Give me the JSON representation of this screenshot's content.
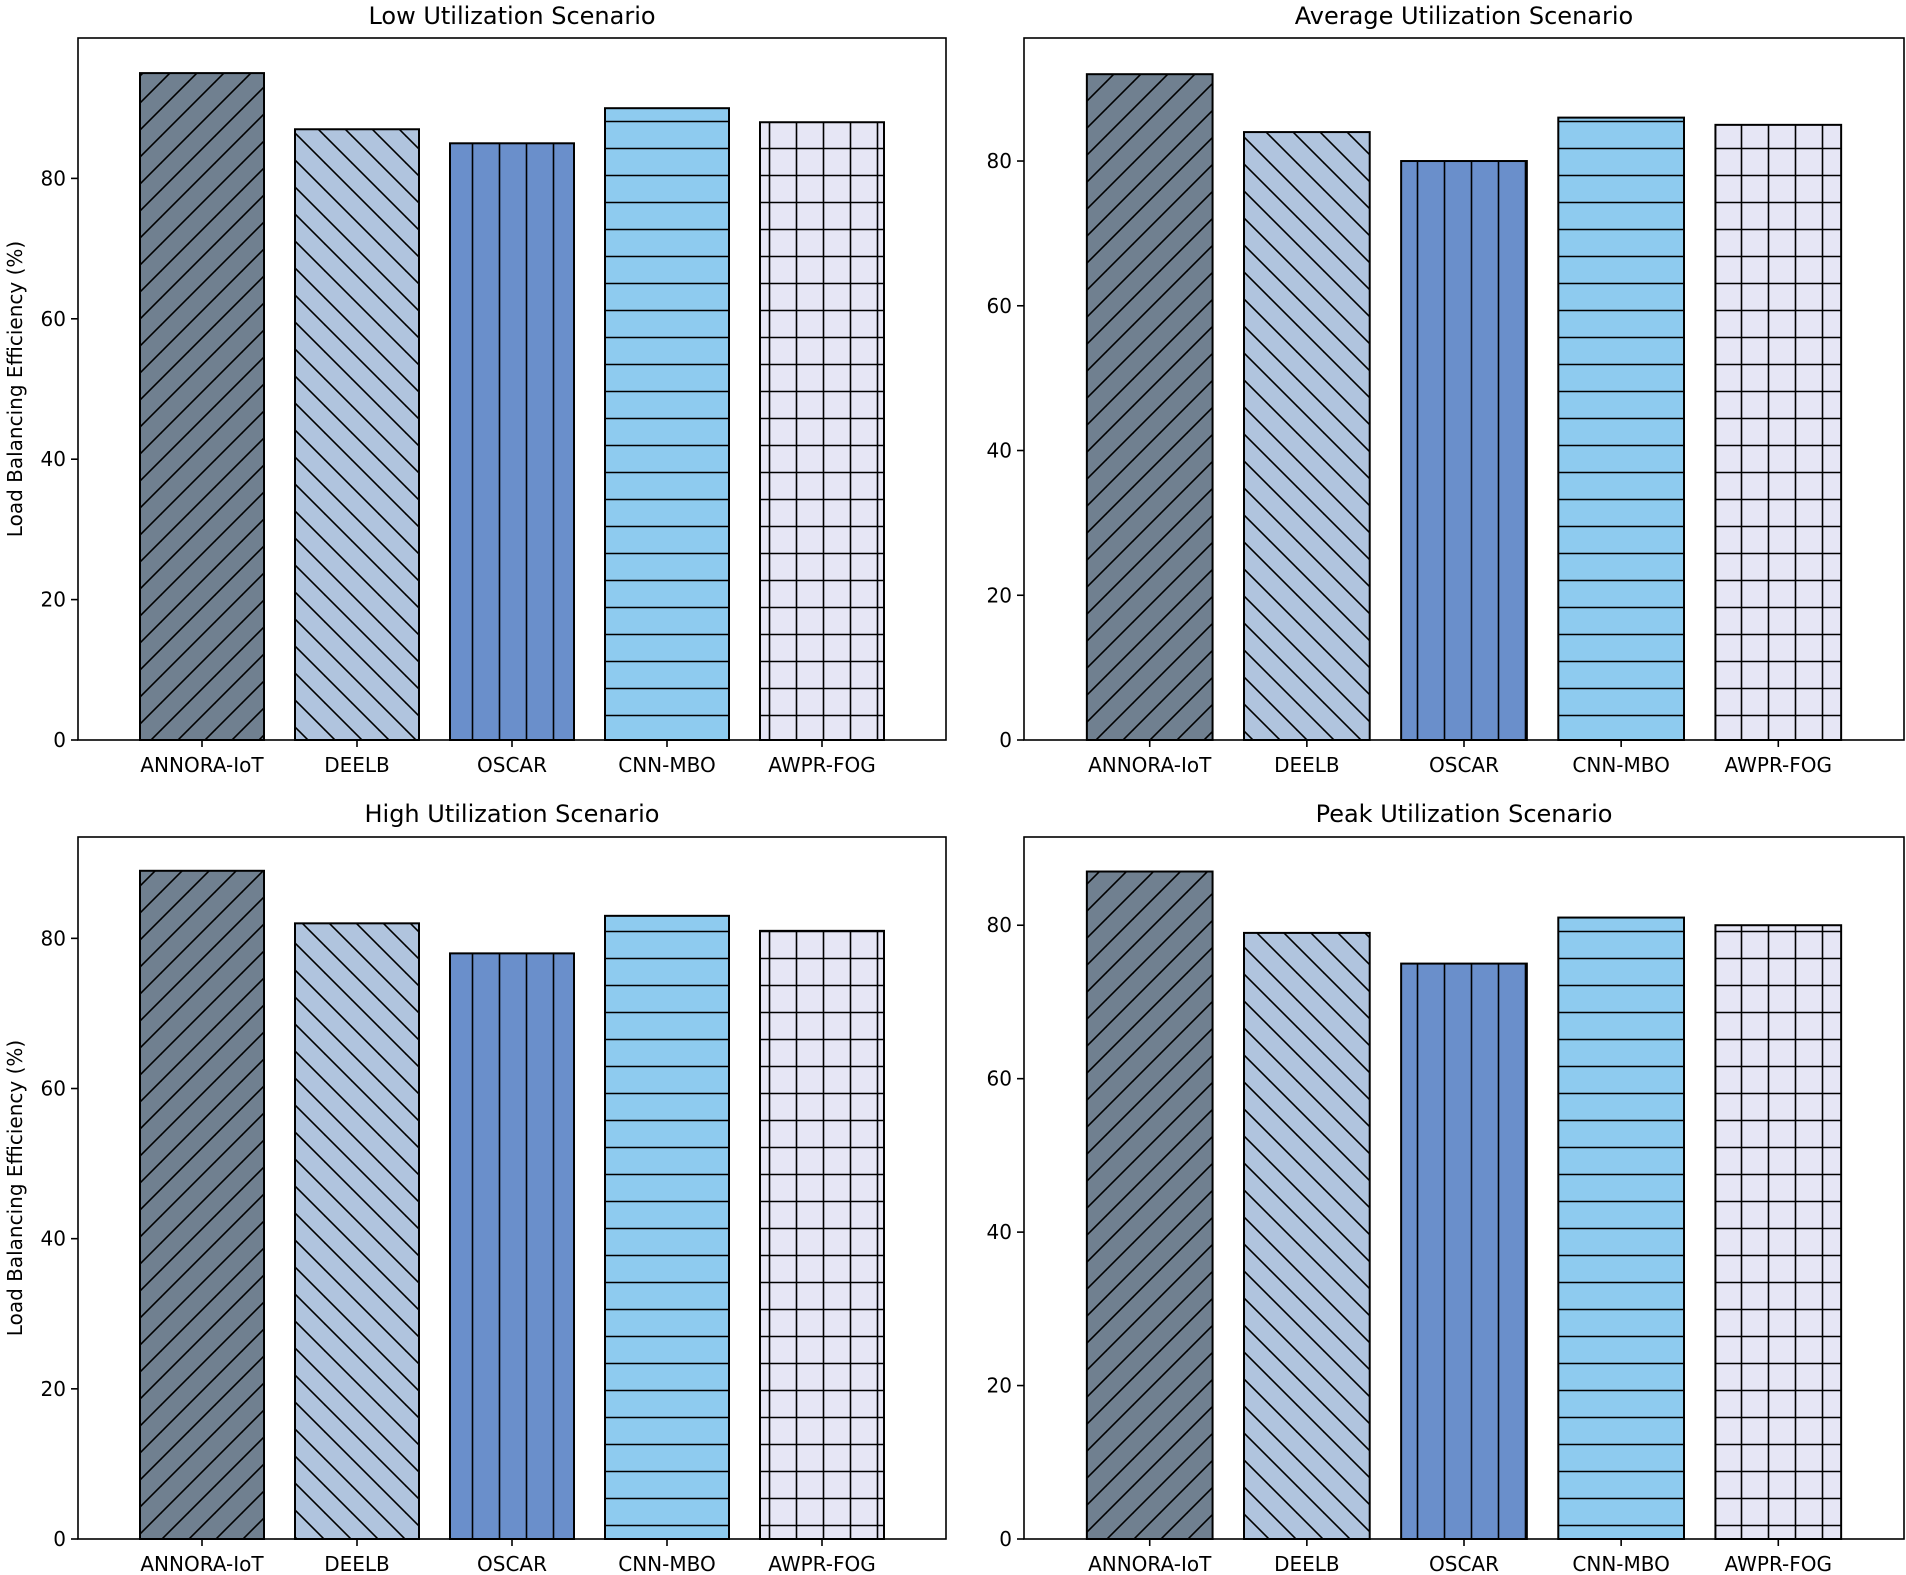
{
  "chart_data": [
    {
      "type": "bar",
      "title": "Low Utilization Scenario",
      "xlabel": "",
      "ylabel": "Load Balancing Efficiency (%)",
      "ylim": [
        0,
        100
      ],
      "yticks": [
        0,
        20,
        40,
        60,
        80
      ],
      "grid": false,
      "categories": [
        "ANNORA-IoT",
        "DEELB",
        "OSCAR",
        "CNN-MBO",
        "AWPR-FOG"
      ],
      "values": [
        95,
        87,
        85,
        90,
        88
      ]
    },
    {
      "type": "bar",
      "title": "Average Utilization Scenario",
      "xlabel": "",
      "ylabel": "",
      "ylim": [
        0,
        97
      ],
      "yticks": [
        0,
        20,
        40,
        60,
        80
      ],
      "grid": false,
      "categories": [
        "ANNORA-IoT",
        "DEELB",
        "OSCAR",
        "CNN-MBO",
        "AWPR-FOG"
      ],
      "values": [
        92,
        84,
        80,
        86,
        85
      ]
    },
    {
      "type": "bar",
      "title": "High Utilization Scenario",
      "xlabel": "",
      "ylabel": "Load Balancing Efficiency (%)",
      "ylim": [
        0,
        93.5
      ],
      "yticks": [
        0,
        20,
        40,
        60,
        80
      ],
      "grid": false,
      "categories": [
        "ANNORA-IoT",
        "DEELB",
        "OSCAR",
        "CNN-MBO",
        "AWPR-FOG"
      ],
      "values": [
        89,
        82,
        78,
        83,
        81
      ]
    },
    {
      "type": "bar",
      "title": "Peak Utilization Scenario",
      "xlabel": "",
      "ylabel": "",
      "ylim": [
        0,
        91.5
      ],
      "yticks": [
        0,
        20,
        40,
        60,
        80
      ],
      "grid": false,
      "categories": [
        "ANNORA-IoT",
        "DEELB",
        "OSCAR",
        "CNN-MBO",
        "AWPR-FOG"
      ],
      "values": [
        87,
        79,
        75,
        81,
        80
      ]
    }
  ],
  "series_style": [
    {
      "color": "#708090",
      "hatch": "forward-diagonal"
    },
    {
      "color": "#b0c4de",
      "hatch": "back-diagonal"
    },
    {
      "color": "#6a8fcb",
      "hatch": "vertical"
    },
    {
      "color": "#8ecbef",
      "hatch": "horizontal"
    },
    {
      "color": "#e6e6f5",
      "hatch": "grid"
    }
  ]
}
